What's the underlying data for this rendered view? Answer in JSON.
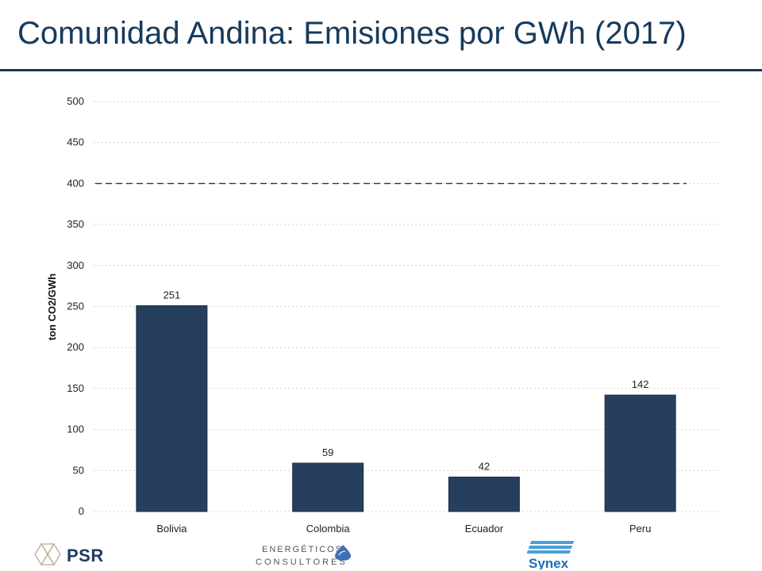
{
  "slide": {
    "title": "Comunidad Andina: Emisiones por GWh (2017)"
  },
  "logos": {
    "psr": "PSR",
    "mec_line1": "ENERGÉTICOS",
    "mec_line2": "CONSULTORES",
    "synex": "Synex"
  },
  "colors": {
    "bar": "#263f5f",
    "title": "#163a5c",
    "grid": "#d0d0d0",
    "reference_line": "#333333"
  },
  "chart_data": {
    "type": "bar",
    "categories": [
      "Bolivia",
      "Colombia",
      "Ecuador",
      "Peru"
    ],
    "values": [
      251,
      59,
      42,
      142
    ],
    "data_labels": [
      "251",
      "59",
      "42",
      "142"
    ],
    "ylabel": "ton CO2/GWh",
    "xlabel": "",
    "ylim": [
      0,
      500
    ],
    "yticks": [
      0,
      50,
      100,
      150,
      200,
      250,
      300,
      350,
      400,
      450,
      500
    ],
    "reference_line": {
      "value": 400,
      "style": "dashed"
    },
    "grid": true,
    "legend": "none"
  }
}
